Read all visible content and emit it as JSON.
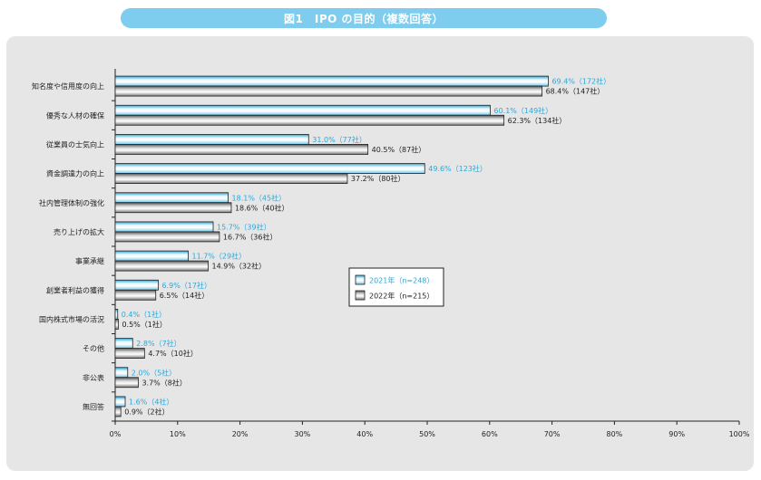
{
  "chart_data": {
    "type": "bar",
    "orientation": "horizontal",
    "title": "図1　IPO の目的（複数回答）",
    "categories": [
      "知名度や信用度の向上",
      "優秀な人材の確保",
      "従業員の士気向上",
      "資金調達力の向上",
      "社内管理体制の強化",
      "売り上げの拡大",
      "事業承継",
      "創業者利益の獲得",
      "国内株式市場の活況",
      "その他",
      "非公表",
      "無回答"
    ],
    "series": [
      {
        "name": "2021年（n=248）",
        "color": "#29a9dc",
        "values": [
          69.4,
          60.1,
          31.0,
          49.6,
          18.1,
          15.7,
          11.7,
          6.9,
          0.4,
          2.8,
          2.0,
          1.6
        ],
        "labels": [
          "69.4%（172社）",
          "60.1%（149社）",
          "31.0%（77社）",
          "49.6%（123社）",
          "18.1%（45社）",
          "15.7%（39社）",
          "11.7%（29社）",
          "6.9%（17社）",
          "0.4%（1社）",
          "2.8%（7社）",
          "2.0%（5社）",
          "1.6%（4社）"
        ]
      },
      {
        "name": "2022年（n=215）",
        "color": "#555555",
        "values": [
          68.4,
          62.3,
          40.5,
          37.2,
          18.6,
          16.7,
          14.9,
          6.5,
          0.5,
          4.7,
          3.7,
          0.9
        ],
        "labels": [
          "68.4%（147社）",
          "62.3%（134社）",
          "40.5%（87社）",
          "37.2%（80社）",
          "18.6%（40社）",
          "16.7%（36社）",
          "14.9%（32社）",
          "6.5%（14社）",
          "0.5%（1社）",
          "4.7%（10社）",
          "3.7%（8社）",
          "0.9%（2社）"
        ]
      }
    ],
    "xlim": [
      0,
      100
    ],
    "xticks": [
      "0%",
      "10%",
      "20%",
      "30%",
      "40%",
      "50%",
      "60%",
      "70%",
      "80%",
      "90%",
      "100%"
    ],
    "grid": false,
    "legend_position": "center-right"
  }
}
